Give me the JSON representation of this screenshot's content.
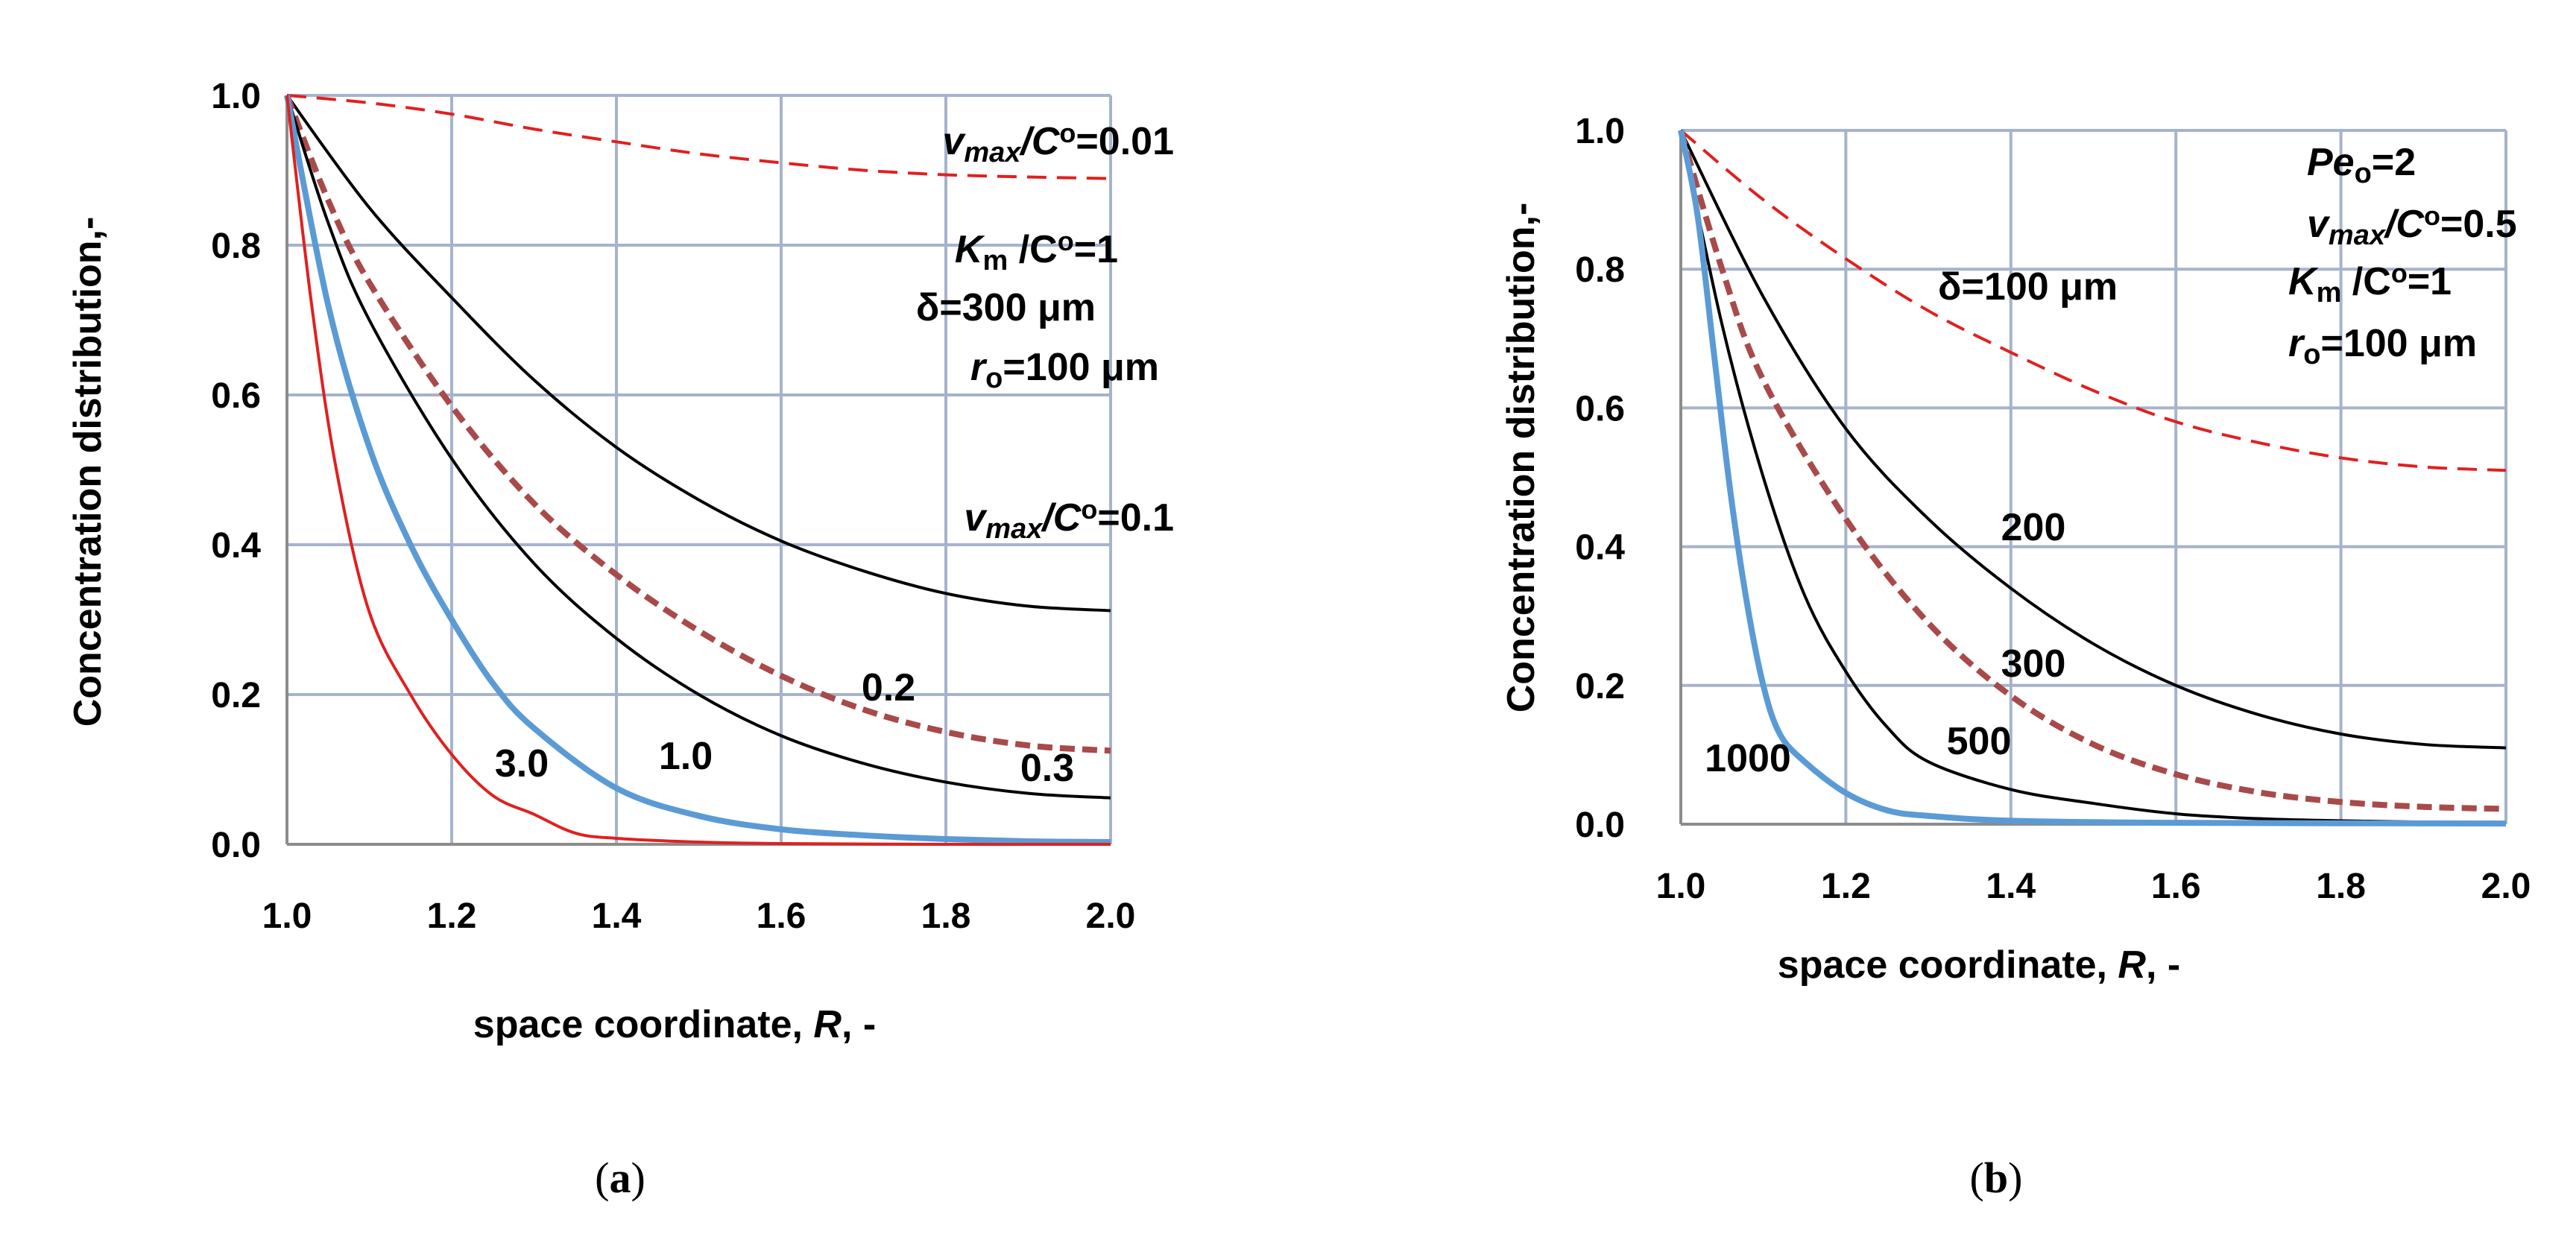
{
  "chart_data": [
    {
      "id": "a",
      "type": "line",
      "xlabel": "space coordinate, R, -",
      "ylabel": "Concentration distribution,-",
      "xlim": [
        1.0,
        2.0
      ],
      "ylim": [
        0.0,
        1.0
      ],
      "x_ticks": [
        "1.0",
        "1.2",
        "1.4",
        "1.6",
        "1.8",
        "2.0"
      ],
      "y_ticks": [
        "0.0",
        "0.2",
        "0.4",
        "0.6",
        "0.8",
        "1.0"
      ],
      "grid": true,
      "panel_label": "(a)",
      "series": [
        {
          "name": "vmax/Co=0.01",
          "style": "dashed",
          "color": "#e02020",
          "x": [
            1.0,
            1.1,
            1.2,
            1.3,
            1.4,
            1.5,
            1.6,
            1.7,
            1.8,
            1.9,
            2.0
          ],
          "y": [
            1.0,
            0.99,
            0.975,
            0.955,
            0.938,
            0.922,
            0.91,
            0.9,
            0.894,
            0.891,
            0.889
          ]
        },
        {
          "name": "vmax/Co=0.1",
          "style": "solid",
          "color": "#000000",
          "x": [
            1.0,
            1.1,
            1.2,
            1.3,
            1.4,
            1.5,
            1.6,
            1.7,
            1.8,
            1.9,
            2.0
          ],
          "y": [
            1.0,
            0.85,
            0.73,
            0.62,
            0.53,
            0.46,
            0.405,
            0.365,
            0.335,
            0.318,
            0.312
          ]
        },
        {
          "name": "vmax/Co=0.2",
          "style": "dashed",
          "color": "#a84a4a",
          "x": [
            1.0,
            1.05,
            1.1,
            1.2,
            1.3,
            1.4,
            1.5,
            1.6,
            1.7,
            1.8,
            1.9,
            2.0
          ],
          "y": [
            1.0,
            0.86,
            0.75,
            0.585,
            0.455,
            0.36,
            0.285,
            0.225,
            0.18,
            0.15,
            0.132,
            0.125
          ]
        },
        {
          "name": "vmax/Co=0.3",
          "style": "solid",
          "color": "#000000",
          "x": [
            1.0,
            1.05,
            1.1,
            1.2,
            1.3,
            1.4,
            1.5,
            1.6,
            1.7,
            1.8,
            1.9,
            2.0
          ],
          "y": [
            1.0,
            0.83,
            0.7,
            0.515,
            0.375,
            0.275,
            0.2,
            0.145,
            0.108,
            0.083,
            0.068,
            0.062
          ]
        },
        {
          "name": "vmax/Co=1.0",
          "style": "solid-thick",
          "color": "#5b9bd5",
          "x": [
            1.0,
            1.05,
            1.1,
            1.15,
            1.2,
            1.25,
            1.3,
            1.4,
            1.5,
            1.6,
            1.7,
            1.8,
            1.9,
            2.0
          ],
          "y": [
            1.0,
            0.72,
            0.53,
            0.4,
            0.3,
            0.215,
            0.155,
            0.075,
            0.038,
            0.02,
            0.012,
            0.007,
            0.004,
            0.003
          ]
        },
        {
          "name": "vmax/Co=3.0",
          "style": "solid",
          "color": "#e02020",
          "x": [
            1.0,
            1.03,
            1.06,
            1.1,
            1.15,
            1.2,
            1.25,
            1.3,
            1.35,
            1.4,
            1.5,
            1.6,
            1.8,
            2.0
          ],
          "y": [
            1.0,
            0.72,
            0.5,
            0.31,
            0.2,
            0.12,
            0.065,
            0.04,
            0.015,
            0.008,
            0.003,
            0.001,
            0.0,
            0.0
          ]
        }
      ],
      "data_labels": [
        "3.0",
        "1.0",
        "0.2",
        "0.3"
      ],
      "annotations": {
        "a1_var": "v",
        "a1_sub": "max",
        "a1_c": "/C",
        "a1_sup": "o",
        "a1_val": "=0.01",
        "a2_var": "K",
        "a2_sub": "m",
        "a2_c": " /C",
        "a2_sup": "o",
        "a2_val": "=1",
        "a3": "δ=300 μm",
        "a4_var": "r",
        "a4_sub": "o",
        "a4_val": "=100 μm",
        "a5_var": "v",
        "a5_sub": "max",
        "a5_c": "/C",
        "a5_sup": "o",
        "a5_val": "=0.1"
      }
    },
    {
      "id": "b",
      "type": "line",
      "xlabel": "space coordinate, R, -",
      "ylabel": "Concentration distribution,-",
      "xlim": [
        1.0,
        2.0
      ],
      "ylim": [
        0.0,
        1.0
      ],
      "x_ticks": [
        "1.0",
        "1.2",
        "1.4",
        "1.6",
        "1.8",
        "2.0"
      ],
      "y_ticks": [
        "0.0",
        "0.2",
        "0.4",
        "0.6",
        "0.8",
        "1.0"
      ],
      "grid": true,
      "panel_label": "(b)",
      "series": [
        {
          "name": "δ=100 μm",
          "style": "dashed",
          "color": "#e02020",
          "x": [
            1.0,
            1.1,
            1.2,
            1.3,
            1.4,
            1.5,
            1.6,
            1.7,
            1.8,
            1.9,
            2.0
          ],
          "y": [
            1.0,
            0.9,
            0.815,
            0.74,
            0.68,
            0.625,
            0.58,
            0.55,
            0.528,
            0.515,
            0.51
          ]
        },
        {
          "name": "δ=200 μm",
          "style": "solid",
          "color": "#000000",
          "x": [
            1.0,
            1.1,
            1.2,
            1.3,
            1.4,
            1.5,
            1.6,
            1.7,
            1.8,
            1.9,
            2.0
          ],
          "y": [
            1.0,
            0.76,
            0.57,
            0.44,
            0.34,
            0.26,
            0.2,
            0.158,
            0.13,
            0.115,
            0.11
          ]
        },
        {
          "name": "δ=300 μm",
          "style": "dashed",
          "color": "#a84a4a",
          "x": [
            1.0,
            1.05,
            1.1,
            1.2,
            1.3,
            1.4,
            1.5,
            1.6,
            1.7,
            1.8,
            1.9,
            2.0
          ],
          "y": [
            1.0,
            0.8,
            0.64,
            0.44,
            0.29,
            0.185,
            0.115,
            0.072,
            0.046,
            0.032,
            0.025,
            0.022
          ]
        },
        {
          "name": "δ=500 μm",
          "style": "solid",
          "color": "#000000",
          "x": [
            1.0,
            1.05,
            1.1,
            1.15,
            1.2,
            1.25,
            1.3,
            1.4,
            1.5,
            1.6,
            1.7,
            1.8,
            1.9,
            2.0
          ],
          "y": [
            1.0,
            0.72,
            0.5,
            0.33,
            0.22,
            0.14,
            0.09,
            0.05,
            0.03,
            0.015,
            0.008,
            0.005,
            0.003,
            0.002
          ]
        },
        {
          "name": "δ=1000 μm",
          "style": "solid-thick",
          "color": "#5b9bd5",
          "x": [
            1.0,
            1.02,
            1.04,
            1.06,
            1.08,
            1.1,
            1.12,
            1.15,
            1.2,
            1.25,
            1.3,
            1.4,
            1.6,
            2.0
          ],
          "y": [
            1.0,
            0.88,
            0.68,
            0.48,
            0.32,
            0.2,
            0.13,
            0.09,
            0.045,
            0.02,
            0.012,
            0.005,
            0.002,
            0.001
          ]
        }
      ],
      "data_labels": [
        "200",
        "300",
        "500",
        "1000"
      ],
      "annotations": {
        "b1_var": "Pe",
        "b1_sub": "o",
        "b1_val": "=2",
        "b2_var": "v",
        "b2_sub": "max",
        "b2_c": "/C",
        "b2_sup": "o",
        "b2_val": "=0.5",
        "b3_var": "K",
        "b3_sub": "m",
        "b3_c": " /C",
        "b3_sup": "o",
        "b3_val": "=1",
        "b4_var": "r",
        "b4_sub": "o",
        "b4_val": "=100 μm",
        "b5": "δ=100 μm"
      }
    }
  ]
}
